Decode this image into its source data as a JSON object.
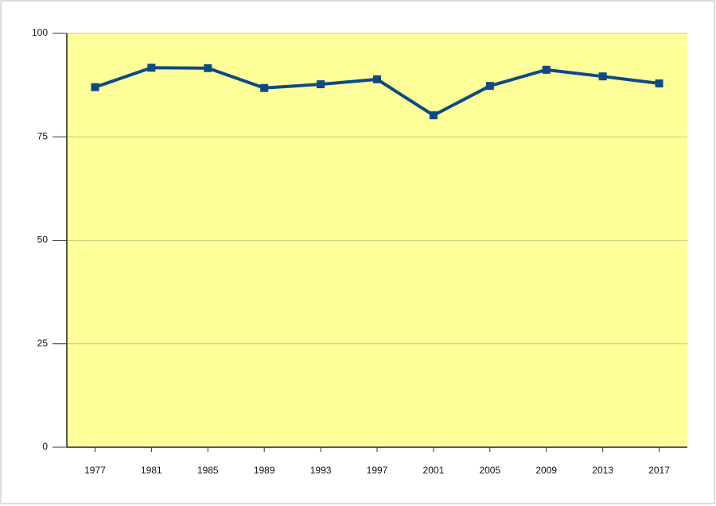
{
  "chart_data": {
    "type": "line",
    "categories": [
      "1977",
      "1981",
      "1985",
      "1989",
      "1993",
      "1997",
      "2001",
      "2005",
      "2009",
      "2013",
      "2017"
    ],
    "series": [
      {
        "color": "#0d4a85",
        "values": [
          87,
          91.7,
          91.6,
          86.8,
          87.7,
          88.9,
          80.2,
          87.3,
          91.2,
          89.6,
          87.9
        ]
      }
    ],
    "ylim": [
      0,
      100
    ],
    "yticks": [
      0,
      25,
      50,
      75,
      100
    ],
    "grid": true,
    "plot_background": "#ffff99"
  }
}
